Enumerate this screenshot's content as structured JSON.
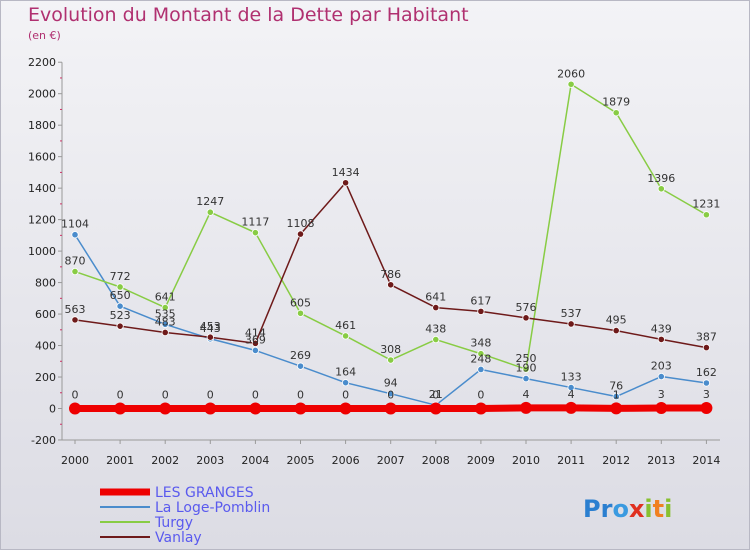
{
  "title": "Evolution du Montant de la Dette par Habitant",
  "subtitle": "(en €)",
  "brand": "Proxiti",
  "chart_data": {
    "type": "line",
    "title": "Evolution du Montant de la Dette par Habitant",
    "ylabel": "(en €)",
    "ylim": [
      -200,
      2200
    ],
    "y_ticks": [
      -200,
      0,
      200,
      400,
      600,
      800,
      1000,
      1200,
      1400,
      1600,
      1800,
      2000,
      2200
    ],
    "categories": [
      "2000",
      "2001",
      "2002",
      "2003",
      "2004",
      "2005",
      "2006",
      "2007",
      "2008",
      "2009",
      "2010",
      "2011",
      "2012",
      "2013",
      "2014"
    ],
    "grid": false,
    "legend_position": "bottom-left",
    "series": [
      {
        "name": "LES GRANGES",
        "color": "#ee0000",
        "values": [
          0,
          0,
          0,
          0,
          0,
          0,
          0,
          0,
          0,
          0,
          4,
          4,
          1,
          3,
          3
        ],
        "labels": [
          "0",
          "0",
          "0",
          "0",
          "0",
          "0",
          "0",
          "0",
          "0",
          "0",
          "4",
          "4",
          "1",
          "3",
          "3"
        ]
      },
      {
        "name": "La Loge-Pomblin",
        "color": "#4a8ccc",
        "values": [
          1104,
          650,
          535,
          443,
          369,
          269,
          164,
          94,
          21,
          248,
          190,
          133,
          76,
          203,
          162
        ],
        "labels": [
          "1104",
          "650",
          "535",
          "443",
          "369",
          "269",
          "164",
          "94",
          "21",
          "248",
          "190",
          "133",
          "76",
          "203",
          "162"
        ]
      },
      {
        "name": "Turgy",
        "color": "#88cc44",
        "values": [
          870,
          772,
          641,
          1247,
          1117,
          605,
          461,
          308,
          438,
          348,
          250,
          2060,
          1879,
          1396,
          1231
        ],
        "labels": [
          "870",
          "772",
          "641",
          "1247",
          "1117",
          "605",
          "461",
          "308",
          "438",
          "348",
          "250",
          "2060",
          "1879",
          "1396",
          "1231"
        ]
      },
      {
        "name": "Vanlay",
        "color": "#6e1a1a",
        "values": [
          563,
          523,
          483,
          453,
          414,
          1108,
          1434,
          786,
          641,
          617,
          576,
          537,
          495,
          439,
          387
        ],
        "labels": [
          "563",
          "523",
          "483",
          "453",
          "414",
          "1108",
          "1434",
          "786",
          "641",
          "617",
          "576",
          "537",
          "495",
          "439",
          "387"
        ]
      }
    ]
  }
}
